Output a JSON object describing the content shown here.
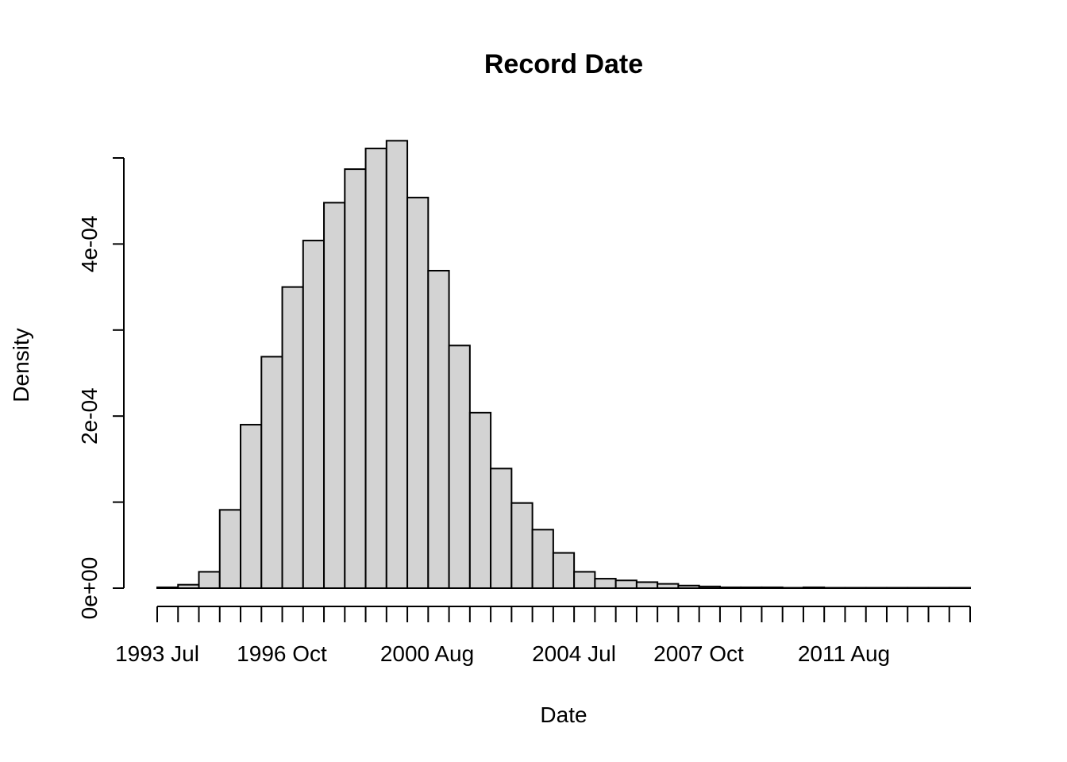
{
  "chart_data": {
    "type": "bar",
    "title": "Record Date",
    "xlabel": "Date",
    "ylabel": "Density",
    "y_ticks": [
      0,
      0.0001,
      0.0002,
      0.0003,
      0.0004,
      0.0005
    ],
    "y_tick_labels": [
      "0e+00",
      "",
      "2e-04",
      "",
      "4e-04",
      ""
    ],
    "x_tick_labels": [
      "1993 Jul",
      "1996 Oct",
      "2000 Aug",
      "2004 Jul",
      "2007 Oct",
      "2011 Aug"
    ],
    "bin_count": 39,
    "values": [
      1e-06,
      4e-06,
      1.9e-05,
      9.1e-05,
      0.00019,
      0.000269,
      0.00035,
      0.000404,
      0.000448,
      0.000487,
      0.000511,
      0.00052,
      0.000454,
      0.000369,
      0.000282,
      0.000204,
      0.000139,
      9.9e-05,
      6.8e-05,
      4.1e-05,
      1.9e-05,
      1.1e-05,
      9e-06,
      7e-06,
      5e-06,
      3e-06,
      2e-06,
      1e-06,
      1e-06,
      1e-06,
      5e-07,
      1e-06,
      5e-07,
      5e-07,
      5e-07,
      5e-07,
      5e-07,
      5e-07,
      5e-07
    ],
    "ylim": [
      0,
      0.00052
    ],
    "grid": false
  }
}
